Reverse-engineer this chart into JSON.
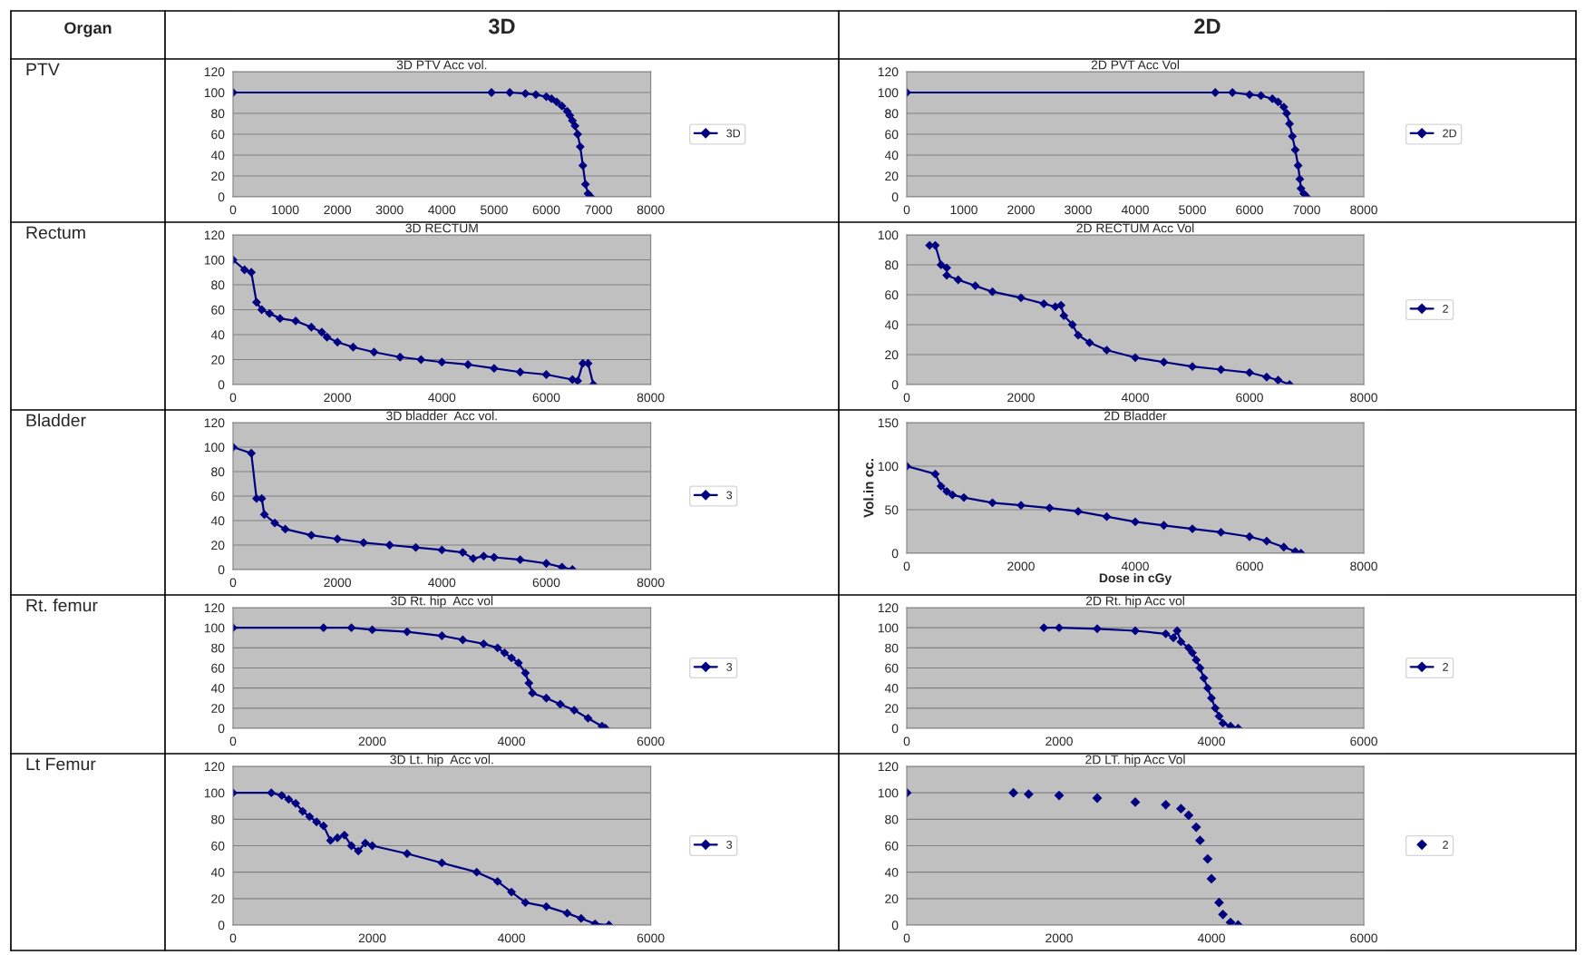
{
  "chart_data": [
    {
      "type": "other",
      "annotations": [
        "Organ",
        "3D",
        "2D",
        "PTV",
        "Rectum",
        "Bladder",
        "Rt. femur",
        "Lt Femur"
      ]
    },
    {
      "type": "line",
      "title": "3D PTV Acc vol.",
      "xlim": [
        0,
        8000
      ],
      "xticks": [
        0,
        1000,
        2000,
        3000,
        4000,
        5000,
        6000,
        7000,
        8000
      ],
      "ylim": [
        0,
        120
      ],
      "yticks": [
        0,
        20,
        40,
        60,
        80,
        100,
        120
      ],
      "grid": "y",
      "legend": "right",
      "marker": "diamond",
      "series": [
        {
          "name": "3D",
          "color": "#000080",
          "x": [
            0,
            4950,
            5300,
            5600,
            5800,
            6000,
            6100,
            6200,
            6300,
            6400,
            6450,
            6500,
            6550,
            6600,
            6650,
            6700,
            6750,
            6800,
            6850
          ],
          "values": [
            100,
            100,
            100,
            99,
            98,
            96,
            94,
            91,
            87,
            82,
            78,
            73,
            68,
            60,
            48,
            30,
            12,
            3,
            0
          ]
        }
      ]
    },
    {
      "type": "line",
      "title": "2D PVT Acc Vol",
      "xlim": [
        0,
        8000
      ],
      "xticks": [
        0,
        1000,
        2000,
        3000,
        4000,
        5000,
        6000,
        7000,
        8000
      ],
      "ylim": [
        0,
        120
      ],
      "yticks": [
        0,
        20,
        40,
        60,
        80,
        100,
        120
      ],
      "grid": "y",
      "legend": "right",
      "marker": "diamond",
      "series": [
        {
          "name": "2D",
          "color": "#000080",
          "x": [
            0,
            5400,
            5700,
            6000,
            6200,
            6400,
            6500,
            6600,
            6650,
            6700,
            6750,
            6800,
            6850,
            6880,
            6900,
            6950,
            7000
          ],
          "values": [
            100,
            100,
            100,
            98,
            97,
            94,
            91,
            86,
            80,
            70,
            58,
            45,
            30,
            17,
            8,
            3,
            0
          ]
        }
      ]
    },
    {
      "type": "line",
      "title": "3D RECTUM",
      "xlim": [
        0,
        8000
      ],
      "xticks": [
        0,
        2000,
        4000,
        6000,
        8000
      ],
      "ylim": [
        0,
        120
      ],
      "yticks": [
        0,
        20,
        40,
        60,
        80,
        100,
        120
      ],
      "grid": "y",
      "marker": "diamond",
      "series": [
        {
          "color": "#000080",
          "x": [
            0,
            220,
            350,
            450,
            550,
            700,
            900,
            1200,
            1500,
            1700,
            1800,
            2000,
            2300,
            2700,
            3200,
            3600,
            4000,
            4500,
            5000,
            5500,
            6000,
            6500,
            6600,
            6700,
            6800,
            6900
          ],
          "values": [
            100,
            92,
            90,
            66,
            60,
            57,
            53,
            51,
            46,
            42,
            38,
            34,
            30,
            26,
            22,
            20,
            18,
            16,
            13,
            10,
            8,
            4,
            3,
            17,
            17,
            0
          ]
        }
      ]
    },
    {
      "type": "line",
      "title": "2D RECTUM Acc Vol",
      "xlim": [
        0,
        8000
      ],
      "xticks": [
        0,
        2000,
        4000,
        6000,
        8000
      ],
      "ylim": [
        0,
        100
      ],
      "yticks": [
        0,
        20,
        40,
        60,
        80,
        100
      ],
      "grid": "y",
      "legend": "right",
      "marker": "diamond",
      "series": [
        {
          "name": "2",
          "color": "#000080",
          "x": [
            400,
            500,
            600,
            700,
            700,
            900,
            1200,
            1500,
            2000,
            2400,
            2600,
            2700,
            2750,
            2900,
            3000,
            3200,
            3500,
            4000,
            4500,
            5000,
            5500,
            6000,
            6300,
            6500,
            6700
          ],
          "values": [
            93,
            93,
            80,
            78,
            73,
            70,
            66,
            62,
            58,
            54,
            52,
            53,
            46,
            40,
            33,
            28,
            23,
            18,
            15,
            12,
            10,
            8,
            5,
            3,
            0
          ]
        }
      ]
    },
    {
      "type": "line",
      "title": "3D bladder  Acc vol.",
      "xlim": [
        0,
        8000
      ],
      "xticks": [
        0,
        2000,
        4000,
        6000,
        8000
      ],
      "ylim": [
        0,
        120
      ],
      "yticks": [
        0,
        20,
        40,
        60,
        80,
        100,
        120
      ],
      "grid": "y",
      "legend": "right",
      "marker": "diamond",
      "series": [
        {
          "name": "3",
          "color": "#000080",
          "x": [
            0,
            350,
            450,
            550,
            600,
            800,
            1000,
            1500,
            2000,
            2500,
            3000,
            3500,
            4000,
            4400,
            4600,
            4800,
            5000,
            5500,
            6000,
            6300,
            6500
          ],
          "values": [
            100,
            95,
            58,
            58,
            45,
            38,
            33,
            28,
            25,
            22,
            20,
            18,
            16,
            14,
            9,
            11,
            10,
            8,
            5,
            2,
            0
          ]
        }
      ]
    },
    {
      "type": "line",
      "title": "2D Bladder",
      "xlabel": "Dose in cGy",
      "ylabel": "Vol.in cc.",
      "xlim": [
        0,
        8000
      ],
      "xticks": [
        0,
        2000,
        4000,
        6000,
        8000
      ],
      "ylim": [
        0,
        150
      ],
      "yticks": [
        0,
        50,
        100,
        150
      ],
      "grid": "y",
      "marker": "diamond",
      "series": [
        {
          "color": "#000080",
          "x": [
            0,
            500,
            600,
            700,
            800,
            1000,
            1500,
            2000,
            2500,
            3000,
            3500,
            4000,
            4500,
            5000,
            5500,
            6000,
            6300,
            6600,
            6800,
            6900
          ],
          "values": [
            100,
            91,
            77,
            71,
            67,
            64,
            58,
            55,
            52,
            48,
            42,
            36,
            32,
            28,
            24,
            19,
            14,
            7,
            2,
            0
          ]
        }
      ]
    },
    {
      "type": "line",
      "title": "3D Rt. hip  Acc vol",
      "xlim": [
        0,
        6000
      ],
      "xticks": [
        0,
        2000,
        4000,
        6000
      ],
      "ylim": [
        0,
        120
      ],
      "yticks": [
        0,
        20,
        40,
        60,
        80,
        100,
        120
      ],
      "grid": "y",
      "legend": "right",
      "marker": "diamond",
      "series": [
        {
          "name": "3",
          "color": "#000080",
          "x": [
            0,
            1300,
            1700,
            2000,
            2500,
            3000,
            3300,
            3600,
            3800,
            3900,
            4000,
            4100,
            4200,
            4250,
            4300,
            4500,
            4700,
            4900,
            5100,
            5300,
            5350
          ],
          "values": [
            100,
            100,
            100,
            98,
            96,
            92,
            88,
            84,
            80,
            75,
            70,
            65,
            55,
            45,
            35,
            30,
            24,
            18,
            10,
            2,
            0
          ]
        }
      ]
    },
    {
      "type": "line",
      "title": "2D Rt. hip Acc vol",
      "xlim": [
        0,
        6000
      ],
      "xticks": [
        0,
        2000,
        4000,
        6000
      ],
      "ylim": [
        0,
        120
      ],
      "yticks": [
        0,
        20,
        40,
        60,
        80,
        100,
        120
      ],
      "grid": "y",
      "legend": "right",
      "marker": "diamond",
      "series": [
        {
          "name": "2",
          "color": "#000080",
          "x": [
            1800,
            2000,
            2500,
            3000,
            3400,
            3500,
            3550,
            3600,
            3700,
            3750,
            3800,
            3850,
            3900,
            3950,
            4000,
            4050,
            4100,
            4150,
            4250,
            4350
          ],
          "values": [
            100,
            100,
            99,
            97,
            94,
            90,
            97,
            86,
            80,
            75,
            68,
            60,
            50,
            40,
            30,
            20,
            12,
            5,
            2,
            0
          ]
        }
      ]
    },
    {
      "type": "line",
      "title": "3D Lt. hip  Acc vol.",
      "xlim": [
        0,
        6000
      ],
      "xticks": [
        0,
        2000,
        4000,
        6000
      ],
      "ylim": [
        0,
        120
      ],
      "yticks": [
        0,
        20,
        40,
        60,
        80,
        100,
        120
      ],
      "grid": "y",
      "legend": "right",
      "marker": "diamond",
      "series": [
        {
          "name": "3",
          "color": "#000080",
          "x": [
            0,
            550,
            700,
            800,
            900,
            1000,
            1100,
            1200,
            1300,
            1400,
            1500,
            1600,
            1700,
            1800,
            1900,
            2000,
            2500,
            3000,
            3500,
            3800,
            4000,
            4200,
            4500,
            4800,
            5000,
            5200,
            5400
          ],
          "values": [
            100,
            100,
            98,
            95,
            92,
            86,
            82,
            78,
            75,
            64,
            66,
            68,
            60,
            56,
            62,
            60,
            54,
            47,
            40,
            33,
            25,
            17,
            14,
            9,
            5,
            1,
            0
          ]
        }
      ]
    },
    {
      "type": "scatter",
      "title": "2D LT. hip Acc Vol",
      "xlim": [
        0,
        6000
      ],
      "xticks": [
        0,
        2000,
        4000,
        6000
      ],
      "ylim": [
        0,
        120
      ],
      "yticks": [
        0,
        20,
        40,
        60,
        80,
        100,
        120
      ],
      "grid": "y",
      "legend": "right",
      "marker": "diamond",
      "series": [
        {
          "name": "2",
          "color": "#000080",
          "x": [
            0,
            1400,
            1600,
            2000,
            2500,
            3000,
            3400,
            3600,
            3700,
            3800,
            3850,
            3950,
            4000,
            4100,
            4150,
            4250,
            4350
          ],
          "values": [
            100,
            100,
            99,
            98,
            96,
            93,
            91,
            88,
            83,
            74,
            64,
            50,
            35,
            17,
            8,
            2,
            0
          ]
        }
      ]
    }
  ]
}
